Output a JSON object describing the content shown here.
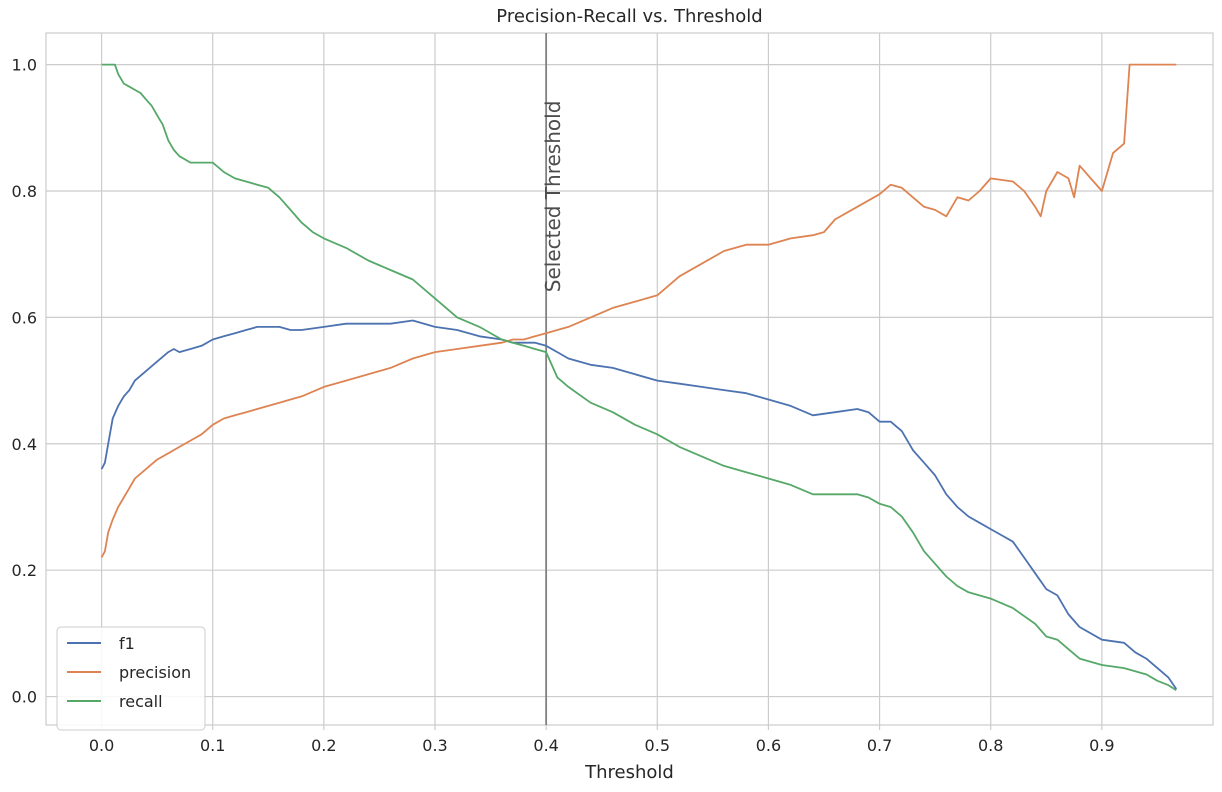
{
  "chart_data": {
    "type": "line",
    "title": "Precision-Recall vs. Threshold",
    "xlabel": "Threshold",
    "ylabel": "",
    "xlim": [
      -0.05,
      1.0
    ],
    "ylim": [
      -0.045,
      1.05
    ],
    "xticks": [
      0.0,
      0.1,
      0.2,
      0.3,
      0.4,
      0.5,
      0.6,
      0.7,
      0.8,
      0.9
    ],
    "xtick_labels": [
      "0.0",
      "0.1",
      "0.2",
      "0.3",
      "0.4",
      "0.5",
      "0.6",
      "0.7",
      "0.8",
      "0.9"
    ],
    "yticks": [
      0.0,
      0.2,
      0.4,
      0.6,
      0.8,
      1.0
    ],
    "ytick_labels": [
      "0.0",
      "0.2",
      "0.4",
      "0.6",
      "0.8",
      "1.0"
    ],
    "grid": true,
    "legend_position": "bottom-left",
    "annotation": {
      "x": 0.4,
      "text": "Selected Threshold",
      "color": "#808080"
    },
    "series": [
      {
        "name": "f1",
        "color": "#4c72b0",
        "x": [
          0.0,
          0.003,
          0.006,
          0.01,
          0.015,
          0.02,
          0.025,
          0.03,
          0.04,
          0.05,
          0.06,
          0.065,
          0.07,
          0.08,
          0.09,
          0.1,
          0.11,
          0.12,
          0.13,
          0.14,
          0.15,
          0.16,
          0.17,
          0.18,
          0.2,
          0.22,
          0.24,
          0.26,
          0.28,
          0.3,
          0.32,
          0.34,
          0.36,
          0.37,
          0.38,
          0.39,
          0.4,
          0.41,
          0.42,
          0.44,
          0.46,
          0.48,
          0.5,
          0.52,
          0.54,
          0.56,
          0.58,
          0.6,
          0.62,
          0.64,
          0.66,
          0.68,
          0.69,
          0.7,
          0.71,
          0.72,
          0.73,
          0.74,
          0.75,
          0.76,
          0.77,
          0.78,
          0.79,
          0.8,
          0.81,
          0.82,
          0.83,
          0.84,
          0.85,
          0.86,
          0.87,
          0.88,
          0.9,
          0.92,
          0.93,
          0.94,
          0.95,
          0.96,
          0.967
        ],
        "y": [
          0.36,
          0.37,
          0.4,
          0.44,
          0.46,
          0.475,
          0.485,
          0.5,
          0.515,
          0.53,
          0.545,
          0.55,
          0.545,
          0.55,
          0.555,
          0.565,
          0.57,
          0.575,
          0.58,
          0.585,
          0.585,
          0.585,
          0.58,
          0.58,
          0.585,
          0.59,
          0.59,
          0.59,
          0.595,
          0.585,
          0.58,
          0.57,
          0.565,
          0.56,
          0.56,
          0.56,
          0.555,
          0.545,
          0.535,
          0.525,
          0.52,
          0.51,
          0.5,
          0.495,
          0.49,
          0.485,
          0.48,
          0.47,
          0.46,
          0.445,
          0.45,
          0.455,
          0.45,
          0.435,
          0.435,
          0.42,
          0.39,
          0.37,
          0.35,
          0.32,
          0.3,
          0.285,
          0.275,
          0.265,
          0.255,
          0.245,
          0.22,
          0.195,
          0.17,
          0.16,
          0.13,
          0.11,
          0.09,
          0.085,
          0.07,
          0.06,
          0.045,
          0.03,
          0.012
        ]
      },
      {
        "name": "precision",
        "color": "#dd8452",
        "x": [
          0.0,
          0.003,
          0.006,
          0.01,
          0.015,
          0.02,
          0.025,
          0.03,
          0.04,
          0.05,
          0.06,
          0.07,
          0.08,
          0.09,
          0.1,
          0.11,
          0.12,
          0.13,
          0.14,
          0.15,
          0.16,
          0.17,
          0.18,
          0.2,
          0.22,
          0.24,
          0.26,
          0.28,
          0.3,
          0.32,
          0.34,
          0.36,
          0.37,
          0.38,
          0.39,
          0.4,
          0.41,
          0.42,
          0.44,
          0.46,
          0.48,
          0.5,
          0.52,
          0.54,
          0.56,
          0.58,
          0.6,
          0.62,
          0.64,
          0.65,
          0.66,
          0.68,
          0.7,
          0.71,
          0.72,
          0.73,
          0.74,
          0.75,
          0.76,
          0.77,
          0.78,
          0.79,
          0.8,
          0.82,
          0.83,
          0.84,
          0.845,
          0.85,
          0.86,
          0.87,
          0.875,
          0.88,
          0.9,
          0.91,
          0.92,
          0.925,
          0.93,
          0.94,
          0.95,
          0.96,
          0.967
        ],
        "y": [
          0.22,
          0.23,
          0.26,
          0.28,
          0.3,
          0.315,
          0.33,
          0.345,
          0.36,
          0.375,
          0.385,
          0.395,
          0.405,
          0.415,
          0.43,
          0.44,
          0.445,
          0.45,
          0.455,
          0.46,
          0.465,
          0.47,
          0.475,
          0.49,
          0.5,
          0.51,
          0.52,
          0.535,
          0.545,
          0.55,
          0.555,
          0.56,
          0.565,
          0.565,
          0.57,
          0.575,
          0.58,
          0.585,
          0.6,
          0.615,
          0.625,
          0.635,
          0.665,
          0.685,
          0.705,
          0.715,
          0.715,
          0.725,
          0.73,
          0.735,
          0.755,
          0.775,
          0.795,
          0.81,
          0.805,
          0.79,
          0.775,
          0.77,
          0.76,
          0.79,
          0.785,
          0.8,
          0.82,
          0.815,
          0.8,
          0.775,
          0.76,
          0.8,
          0.83,
          0.82,
          0.79,
          0.84,
          0.8,
          0.86,
          0.875,
          1.0,
          1.0,
          1.0,
          1.0,
          1.0,
          1.0
        ]
      },
      {
        "name": "recall",
        "color": "#55a868",
        "x": [
          0.0,
          0.005,
          0.012,
          0.015,
          0.02,
          0.025,
          0.03,
          0.035,
          0.04,
          0.045,
          0.05,
          0.055,
          0.06,
          0.065,
          0.07,
          0.08,
          0.09,
          0.1,
          0.11,
          0.12,
          0.13,
          0.14,
          0.15,
          0.16,
          0.17,
          0.18,
          0.19,
          0.2,
          0.22,
          0.24,
          0.26,
          0.28,
          0.3,
          0.32,
          0.34,
          0.36,
          0.37,
          0.38,
          0.39,
          0.4,
          0.41,
          0.42,
          0.44,
          0.46,
          0.48,
          0.5,
          0.52,
          0.54,
          0.56,
          0.58,
          0.6,
          0.62,
          0.64,
          0.66,
          0.68,
          0.69,
          0.7,
          0.71,
          0.72,
          0.73,
          0.74,
          0.75,
          0.76,
          0.77,
          0.78,
          0.8,
          0.82,
          0.84,
          0.85,
          0.86,
          0.87,
          0.88,
          0.9,
          0.92,
          0.93,
          0.94,
          0.95,
          0.96,
          0.967
        ],
        "y": [
          1.0,
          1.0,
          1.0,
          0.985,
          0.97,
          0.965,
          0.96,
          0.955,
          0.945,
          0.935,
          0.92,
          0.905,
          0.88,
          0.865,
          0.855,
          0.845,
          0.845,
          0.845,
          0.83,
          0.82,
          0.815,
          0.81,
          0.805,
          0.79,
          0.77,
          0.75,
          0.735,
          0.725,
          0.71,
          0.69,
          0.675,
          0.66,
          0.63,
          0.6,
          0.585,
          0.565,
          0.56,
          0.555,
          0.55,
          0.545,
          0.505,
          0.49,
          0.465,
          0.45,
          0.43,
          0.415,
          0.395,
          0.38,
          0.365,
          0.355,
          0.345,
          0.335,
          0.32,
          0.32,
          0.32,
          0.315,
          0.305,
          0.3,
          0.285,
          0.26,
          0.23,
          0.21,
          0.19,
          0.175,
          0.165,
          0.155,
          0.14,
          0.115,
          0.095,
          0.09,
          0.075,
          0.06,
          0.05,
          0.045,
          0.04,
          0.035,
          0.025,
          0.018,
          0.01
        ]
      }
    ]
  }
}
